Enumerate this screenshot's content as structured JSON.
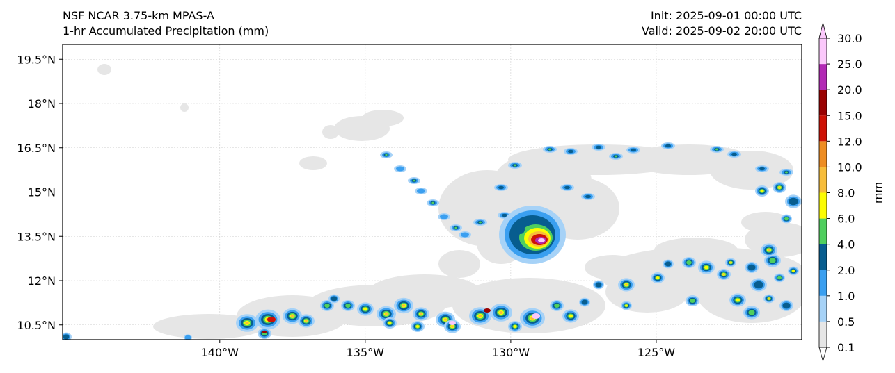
{
  "header": {
    "model": "NSF NCAR 3.75-km MPAS-A",
    "field": "1-hr Accumulated Precipitation (mm)",
    "init": "Init: 2025-09-01 00:00 UTC",
    "valid": "Valid: 2025-09-02 20:00 UTC"
  },
  "map": {
    "lon_labels": [
      "140°W",
      "135°W",
      "130°W",
      "125°W"
    ],
    "lon_values": [
      -140,
      -135,
      -130,
      -125
    ],
    "lat_labels": [
      "19.5°N",
      "18°N",
      "16.5°N",
      "15°N",
      "13.5°N",
      "12°N",
      "10.5°N"
    ],
    "lat_values": [
      19.5,
      18,
      16.5,
      15,
      13.5,
      12,
      10.5
    ],
    "lon_range": [
      -145.4,
      -120.0
    ],
    "lat_range": [
      10.0,
      20.0
    ]
  },
  "colorbar": {
    "label": "mm",
    "levels": [
      "0.1",
      "0.5",
      "1.0",
      "2.0",
      "4.0",
      "6.0",
      "8.0",
      "10.0",
      "12.0",
      "15.0",
      "20.0",
      "25.0",
      "30.0"
    ],
    "colors": [
      "#e6e6e6",
      "#a6d2f7",
      "#3a9ff0",
      "#075d8f",
      "#4fcf5e",
      "#fcfc03",
      "#f7bd3a",
      "#ee8d22",
      "#ce1205",
      "#9a0202",
      "#b229b5",
      "#fbc8fb"
    ]
  }
}
